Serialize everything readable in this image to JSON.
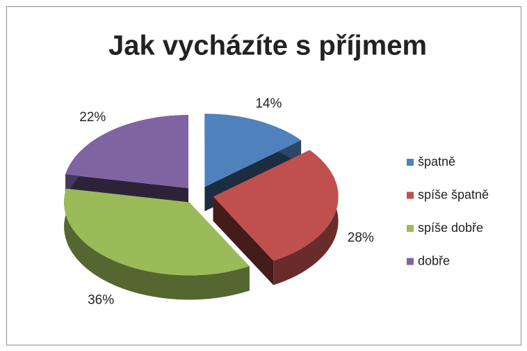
{
  "chart_data": {
    "type": "pie",
    "title": "Jak vycházíte s příjmem",
    "categories": [
      "špatně",
      "spíše špatně",
      "spíše dobře",
      "dobře"
    ],
    "values": [
      14,
      28,
      36,
      22
    ],
    "value_labels": [
      "14%",
      "28%",
      "36%",
      "22%"
    ],
    "colors": [
      "#4f81bd",
      "#c0504d",
      "#9bbb59",
      "#8064a2"
    ],
    "legend": "right"
  }
}
